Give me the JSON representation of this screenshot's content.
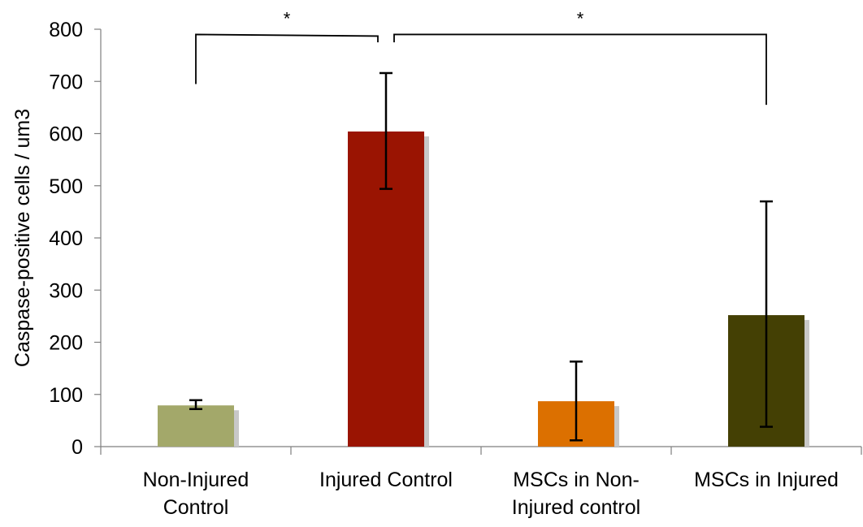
{
  "chart_data": {
    "type": "bar",
    "title": "",
    "xlabel": "",
    "ylabel": "Caspase-positive cells / um3",
    "ylim": [
      0,
      800
    ],
    "yticks": [
      "0",
      "100",
      "200",
      "300",
      "400",
      "500",
      "600",
      "700",
      "800"
    ],
    "categories": [
      [
        "Non-Injured",
        "Control"
      ],
      [
        "Injured Control"
      ],
      [
        "MSCs in Non-",
        "Injured control"
      ],
      [
        "MSCs in Injured"
      ]
    ],
    "values": [
      79,
      604,
      87,
      252
    ],
    "error_low": [
      72,
      494,
      12,
      38
    ],
    "error_high": [
      89,
      716,
      163,
      470
    ],
    "colors": [
      "#a3a86a",
      "#9a1402",
      "#dc7000",
      "#444004"
    ],
    "shadow_color": "#c8c8c8",
    "grid": false,
    "legend": "none",
    "significance": [
      {
        "from": 0,
        "to": 1,
        "label": "*",
        "left_end": 695,
        "right_end": 775,
        "top": 790
      },
      {
        "from": 1,
        "to": 3,
        "label": "*",
        "left_end": 775,
        "right_end": 655,
        "top": 790
      }
    ]
  }
}
